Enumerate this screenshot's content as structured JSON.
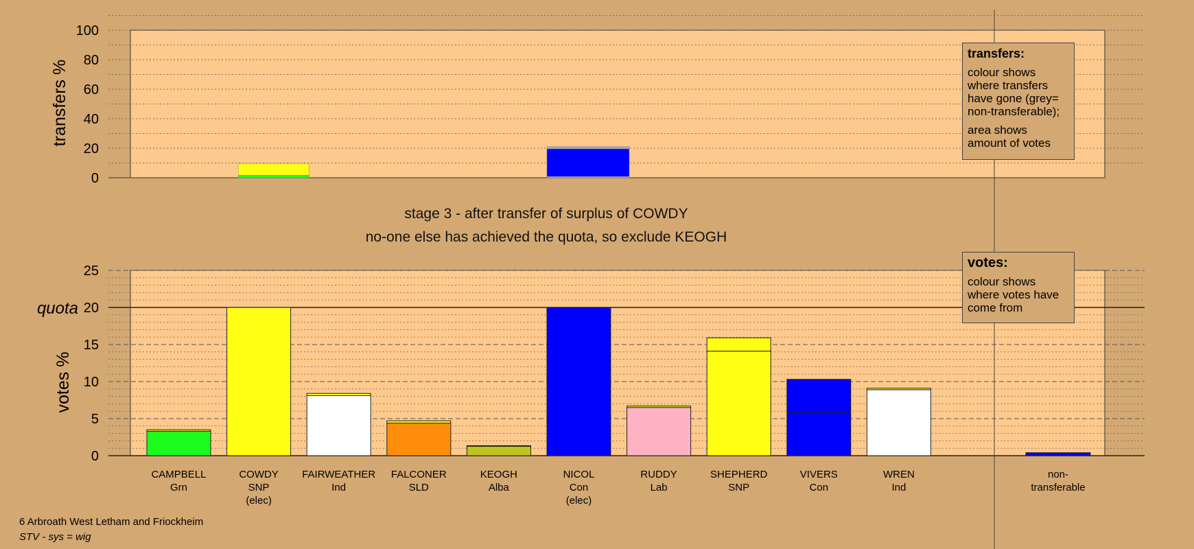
{
  "stage": {
    "line1": "stage 3 - after transfer of surplus of COWDY",
    "line2": "no-one else has achieved the quota, so exclude KEOGH"
  },
  "footer": {
    "ward": "6 Arbroath West Letham and Friockheim",
    "system": "STV - sys = wig"
  },
  "legend_transfers": {
    "title": "transfers:",
    "para1": "colour shows where transfers have gone (grey= non-transferable);",
    "para2": "area shows amount of votes"
  },
  "legend_votes": {
    "title": "votes:",
    "para1": "colour shows where votes have come from"
  },
  "colors": {
    "background": "#d4a872",
    "plot_area": "#fdc98d",
    "Grn": "#1dfa1d",
    "SNP": "#ffff14",
    "Ind": "#ffffff",
    "SLD": "#ff8c0a",
    "Alba": "#c0c41e",
    "Con": "#0000ff",
    "Lab": "#ffb2c4",
    "non_transferable": "#a8a8b8"
  },
  "chart_data": [
    {
      "type": "bar",
      "ylabel": "transfers %",
      "ylim": [
        0,
        100
      ],
      "yticks": [
        0,
        20,
        40,
        60,
        80,
        100
      ],
      "grid": true,
      "bars": [
        {
          "candidate": "FAIRWEATHER",
          "color_key": "Grn",
          "value": 1.7
        },
        {
          "candidate": "FAIRWEATHER",
          "color_key": "SNP",
          "value": 8.0
        },
        {
          "candidate": "NICOL",
          "color_key": "non_transferable",
          "value": 0.8
        },
        {
          "candidate": "NICOL",
          "color_key": "Con",
          "value": 18.8
        },
        {
          "candidate": "NICOL",
          "color_key": "non_transferable",
          "value": 1.5
        }
      ]
    },
    {
      "type": "bar",
      "stacked": true,
      "ylabel": "votes %",
      "ylim": [
        0,
        25
      ],
      "yticks": [
        0,
        5,
        10,
        15,
        20,
        25
      ],
      "quota": {
        "label": "quota",
        "value": 20
      },
      "grid": true,
      "categories": [
        {
          "name": "CAMPBELL",
          "party": "Grn",
          "status": ""
        },
        {
          "name": "COWDY",
          "party": "SNP",
          "status": "(elec)"
        },
        {
          "name": "FAIRWEATHER",
          "party": "Ind",
          "status": ""
        },
        {
          "name": "FALCONER",
          "party": "SLD",
          "status": ""
        },
        {
          "name": "KEOGH",
          "party": "Alba",
          "status": ""
        },
        {
          "name": "NICOL",
          "party": "Con",
          "status": "(elec)"
        },
        {
          "name": "RUDDY",
          "party": "Lab",
          "status": ""
        },
        {
          "name": "SHEPHERD",
          "party": "SNP",
          "status": ""
        },
        {
          "name": "VIVERS",
          "party": "Con",
          "status": ""
        },
        {
          "name": "WREN",
          "party": "Ind",
          "status": ""
        }
      ],
      "series": [
        {
          "segments": [
            [
              3.3,
              "Grn"
            ],
            [
              0.2,
              "SNP"
            ]
          ]
        },
        {
          "segments": [
            [
              20.0,
              "SNP"
            ]
          ]
        },
        {
          "segments": [
            [
              8.1,
              "Ind"
            ],
            [
              0.3,
              "SNP"
            ]
          ]
        },
        {
          "segments": [
            [
              4.4,
              "SLD"
            ],
            [
              0.3,
              "SNP"
            ]
          ]
        },
        {
          "segments": [
            [
              1.3,
              "Alba"
            ],
            [
              0.05,
              "SNP"
            ]
          ]
        },
        {
          "segments": [
            [
              20.0,
              "Con"
            ]
          ]
        },
        {
          "segments": [
            [
              6.5,
              "Lab"
            ],
            [
              0.2,
              "SNP"
            ]
          ]
        },
        {
          "segments": [
            [
              14.1,
              "SNP"
            ],
            [
              1.8,
              "SNP"
            ]
          ]
        },
        {
          "segments": [
            [
              5.8,
              "Con"
            ],
            [
              4.5,
              "Con"
            ]
          ]
        },
        {
          "segments": [
            [
              8.9,
              "Ind"
            ],
            [
              0.2,
              "SNP"
            ]
          ]
        }
      ],
      "non_transferable": {
        "label": "non-transferable",
        "value": 0.4,
        "color_key": "Con"
      }
    }
  ]
}
